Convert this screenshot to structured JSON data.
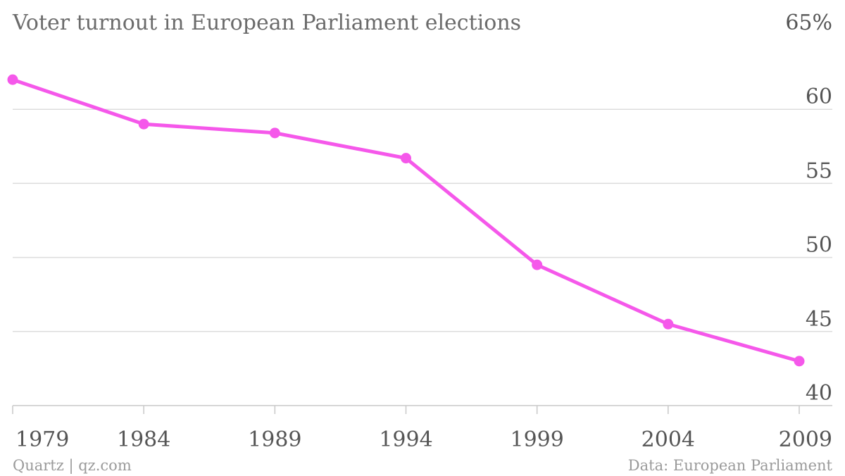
{
  "chart_data": {
    "type": "line",
    "title": "Voter turnout in European Parliament elections",
    "x": [
      "1979",
      "1984",
      "1989",
      "1994",
      "1999",
      "2004",
      "2009"
    ],
    "series": [
      {
        "values": [
          62.0,
          59.0,
          58.4,
          56.7,
          49.5,
          45.5,
          43.0
        ]
      }
    ],
    "ylim": [
      40,
      65
    ],
    "y_ticks": [
      {
        "value": 65,
        "label": "65%"
      },
      {
        "value": 60,
        "label": "60"
      },
      {
        "value": 55,
        "label": "55"
      },
      {
        "value": 50,
        "label": "50"
      },
      {
        "value": 45,
        "label": "45"
      },
      {
        "value": 40,
        "label": "40"
      }
    ],
    "y_axis_side": "right",
    "grid": true,
    "colors": {
      "line": "#f558ea"
    }
  },
  "footer": {
    "source_left": "Quartz | qz.com",
    "source_right": "Data: European Parliament"
  }
}
